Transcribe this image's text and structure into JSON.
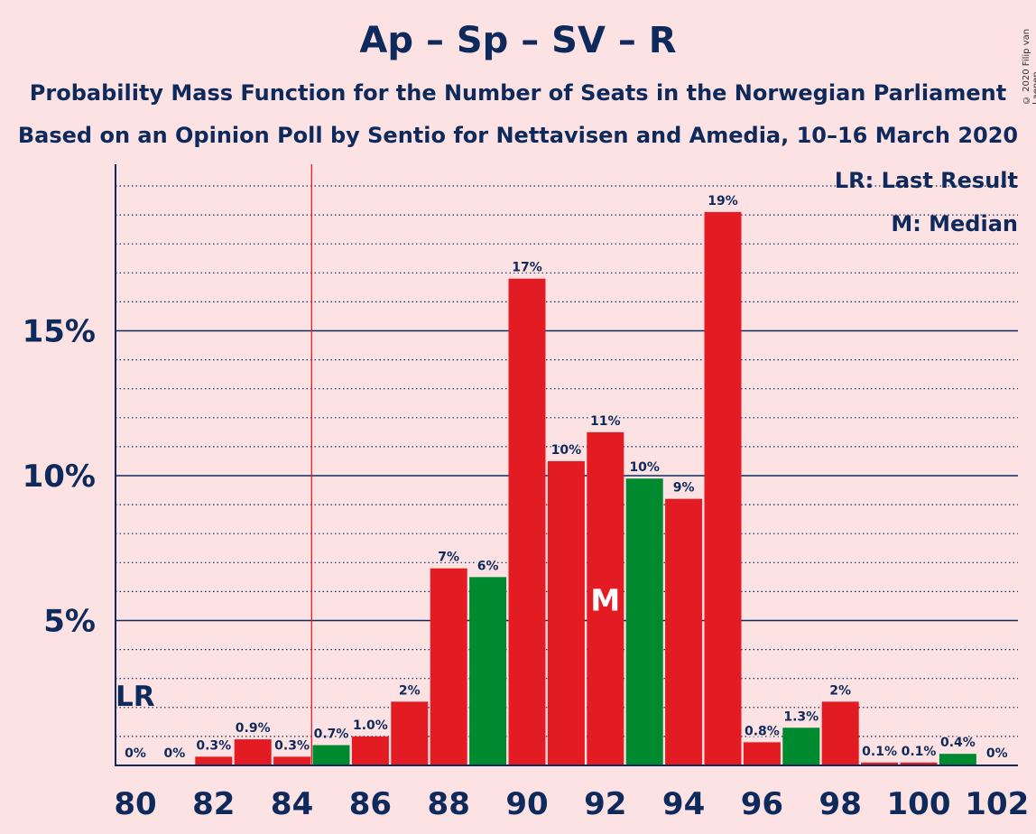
{
  "title": "Ap – Sp – SV – R",
  "subtitle1": "Probability Mass Function for the Number of Seats in the Norwegian Parliament",
  "subtitle2": "Based on an Opinion Poll by Sentio for Nettavisen and Amedia, 10–16 March 2020",
  "copyright": "© 2020 Filip van Laenen",
  "legend": {
    "last_result": "LR: Last Result",
    "median": "M: Median"
  },
  "colors": {
    "red": "#E31B23",
    "green": "#008A30",
    "navy": "#0E2A5C",
    "background": "#FDE2E3",
    "lr_line": "#E31B23"
  },
  "chart_data": {
    "type": "bar",
    "x": [
      80,
      81,
      82,
      83,
      84,
      85,
      86,
      87,
      88,
      89,
      90,
      91,
      92,
      93,
      94,
      95,
      96,
      97,
      98,
      99,
      100,
      101,
      102
    ],
    "values": [
      0,
      0,
      0.3,
      0.9,
      0.3,
      0.7,
      1.0,
      2.2,
      6.8,
      6.5,
      16.8,
      10.5,
      11.5,
      9.9,
      9.2,
      19.1,
      0.8,
      1.3,
      2.2,
      0.1,
      0.1,
      0.4,
      0
    ],
    "labels": [
      "0%",
      "0%",
      "0.3%",
      "0.9%",
      "0.3%",
      "0.7%",
      "1.0%",
      "2%",
      "7%",
      "6%",
      "17%",
      "10%",
      "11%",
      "10%",
      "9%",
      "19%",
      "0.8%",
      "1.3%",
      "2%",
      "0.1%",
      "0.1%",
      "0.4%",
      "0%"
    ],
    "bar_colors": [
      "red",
      "red",
      "red",
      "red",
      "red",
      "green",
      "red",
      "red",
      "red",
      "green",
      "red",
      "red",
      "red",
      "green",
      "red",
      "red",
      "red",
      "green",
      "red",
      "red",
      "red",
      "green",
      "red"
    ],
    "x_ticks": [
      80,
      82,
      84,
      86,
      88,
      90,
      92,
      94,
      96,
      98,
      100,
      102
    ],
    "x_tick_labels": [
      "80",
      "82",
      "84",
      "86",
      "88",
      "90",
      "92",
      "94",
      "96",
      "98",
      "100",
      "102"
    ],
    "y_ticks": [
      5,
      10,
      15
    ],
    "y_tick_labels": [
      "5%",
      "10%",
      "15%"
    ],
    "ylim": [
      0,
      20.8
    ],
    "minor_grid_step": 1,
    "last_result": 80,
    "last_result_label": "LR",
    "median": 92,
    "median_label": "M"
  }
}
